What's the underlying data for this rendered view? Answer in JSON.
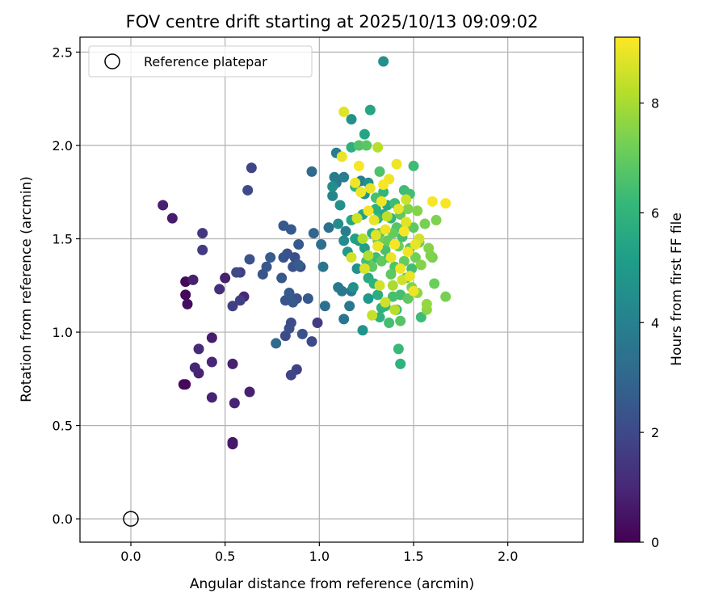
{
  "chart_data": {
    "type": "scatter",
    "title": "FOV centre drift starting at 2025/10/13 09:09:02",
    "xlabel": "Angular distance from reference (arcmin)",
    "ylabel": "Rotation from reference (arcmin)",
    "xlim": [
      -0.27,
      2.4
    ],
    "ylim": [
      -0.125,
      2.58
    ],
    "xticks": [
      0.0,
      0.5,
      1.0,
      1.5,
      2.0
    ],
    "xtick_labels": [
      "0.0",
      "0.5",
      "1.0",
      "1.5",
      "2.0"
    ],
    "yticks": [
      0.0,
      0.5,
      1.0,
      1.5,
      2.0,
      2.5
    ],
    "ytick_labels": [
      "0.0",
      "0.5",
      "1.0",
      "1.5",
      "2.0",
      "2.5"
    ],
    "grid": true,
    "legend": {
      "position": "top-left",
      "entries": [
        "Reference platepar"
      ]
    },
    "reference_point": {
      "x": 0.0,
      "y": 0.0
    },
    "colorbar": {
      "label": "Hours from first FF file",
      "range": [
        0,
        9.2
      ],
      "ticks": [
        0,
        2,
        4,
        6,
        8
      ],
      "tick_labels": [
        "0",
        "2",
        "4",
        "6",
        "8"
      ],
      "colormap": [
        "#440154",
        "#482878",
        "#3e4a89",
        "#31688e",
        "#26828e",
        "#1f9e89",
        "#35b779",
        "#6ece58",
        "#b5de2b",
        "#fde725"
      ]
    },
    "points": [
      [
        0.17,
        1.68,
        0.8
      ],
      [
        0.22,
        1.61,
        0.7
      ],
      [
        0.29,
        1.27,
        0.2
      ],
      [
        0.29,
        1.2,
        0.2
      ],
      [
        0.3,
        1.15,
        0.3
      ],
      [
        0.29,
        0.72,
        0.2
      ],
      [
        0.28,
        0.72,
        0.2
      ],
      [
        0.33,
        1.28,
        0.8
      ],
      [
        0.34,
        0.81,
        1.0
      ],
      [
        0.36,
        0.91,
        1.1
      ],
      [
        0.36,
        0.78,
        0.9
      ],
      [
        0.38,
        1.53,
        1.5
      ],
      [
        0.38,
        1.44,
        1.6
      ],
      [
        0.43,
        0.97,
        0.7
      ],
      [
        0.43,
        0.84,
        1.0
      ],
      [
        0.43,
        0.65,
        0.9
      ],
      [
        0.47,
        1.23,
        1.2
      ],
      [
        0.5,
        1.29,
        0.8
      ],
      [
        0.54,
        0.83,
        0.8
      ],
      [
        0.55,
        0.62,
        0.9
      ],
      [
        0.54,
        0.41,
        0.5
      ],
      [
        0.54,
        0.4,
        0.6
      ],
      [
        0.54,
        1.14,
        1.7
      ],
      [
        0.56,
        1.32,
        2.0
      ],
      [
        0.58,
        1.32,
        1.7
      ],
      [
        0.58,
        1.17,
        1.7
      ],
      [
        0.6,
        1.19,
        1.0
      ],
      [
        0.62,
        1.76,
        2.1
      ],
      [
        0.64,
        1.88,
        1.9
      ],
      [
        0.63,
        1.39,
        2.3
      ],
      [
        0.63,
        0.68,
        0.8
      ],
      [
        0.7,
        1.31,
        2.4
      ],
      [
        0.72,
        1.35,
        2.5
      ],
      [
        0.74,
        1.4,
        2.7
      ],
      [
        0.77,
        0.94,
        3.2
      ],
      [
        0.8,
        1.29,
        2.5
      ],
      [
        0.81,
        1.57,
        2.6
      ],
      [
        0.81,
        1.4,
        2.4
      ],
      [
        0.82,
        1.17,
        2.4
      ],
      [
        0.82,
        0.98,
        2.1
      ],
      [
        0.83,
        1.42,
        2.3
      ],
      [
        0.84,
        1.02,
        2.2
      ],
      [
        0.84,
        1.21,
        2.6
      ],
      [
        0.85,
        1.05,
        2.1
      ],
      [
        0.85,
        1.55,
        2.6
      ],
      [
        0.85,
        0.77,
        1.9
      ],
      [
        0.86,
        1.16,
        2.5
      ],
      [
        0.86,
        1.35,
        2.3
      ],
      [
        0.87,
        1.4,
        2.2
      ],
      [
        0.88,
        1.18,
        2.3
      ],
      [
        0.88,
        0.8,
        1.8
      ],
      [
        0.89,
        1.47,
        2.6
      ],
      [
        0.89,
        1.36,
        2.7
      ],
      [
        0.9,
        1.35,
        2.0
      ],
      [
        0.91,
        0.99,
        2.4
      ],
      [
        0.94,
        1.18,
        2.5
      ],
      [
        0.96,
        1.86,
        3.2
      ],
      [
        0.96,
        0.95,
        2.0
      ],
      [
        0.97,
        1.53,
        3.0
      ],
      [
        0.99,
        1.05,
        1.6
      ],
      [
        1.01,
        1.47,
        3.3
      ],
      [
        1.02,
        1.35,
        3.6
      ],
      [
        1.03,
        1.14,
        3.3
      ],
      [
        1.05,
        1.56,
        3.4
      ],
      [
        1.07,
        1.73,
        4.2
      ],
      [
        1.07,
        1.78,
        4.5
      ],
      [
        1.08,
        1.83,
        3.8
      ],
      [
        1.09,
        1.96,
        3.8
      ],
      [
        1.09,
        1.8,
        3.7
      ],
      [
        1.1,
        1.24,
        3.7
      ],
      [
        1.1,
        1.58,
        4.5
      ],
      [
        1.11,
        1.68,
        4.6
      ],
      [
        1.12,
        1.22,
        3.7
      ],
      [
        1.13,
        1.83,
        3.9
      ],
      [
        1.13,
        1.49,
        4.4
      ],
      [
        1.13,
        1.07,
        3.6
      ],
      [
        1.14,
        1.54,
        3.9
      ],
      [
        1.15,
        1.43,
        4.9
      ],
      [
        1.16,
        1.14,
        3.7
      ],
      [
        1.17,
        1.22,
        3.7
      ],
      [
        1.17,
        2.14,
        4.6
      ],
      [
        1.17,
        1.99,
        5.8
      ],
      [
        1.17,
        1.6,
        5.4
      ],
      [
        1.18,
        1.24,
        4.6
      ],
      [
        1.19,
        1.78,
        5.9
      ],
      [
        1.19,
        1.5,
        5.2
      ],
      [
        1.2,
        1.34,
        4.6
      ],
      [
        1.21,
        2.0,
        6.6
      ],
      [
        1.21,
        1.49,
        4.9
      ],
      [
        1.22,
        1.81,
        3.9
      ],
      [
        1.23,
        1.63,
        5.3
      ],
      [
        1.23,
        1.01,
        4.7
      ],
      [
        1.24,
        1.45,
        5.2
      ],
      [
        1.24,
        2.06,
        5.4
      ],
      [
        1.24,
        1.74,
        4.7
      ],
      [
        1.25,
        2.0,
        6.8
      ],
      [
        1.25,
        1.38,
        6.4
      ],
      [
        1.26,
        1.29,
        5.6
      ],
      [
        1.26,
        1.18,
        4.9
      ],
      [
        1.26,
        1.8,
        4.6
      ],
      [
        1.27,
        2.19,
        5.4
      ],
      [
        1.28,
        1.35,
        6.9
      ],
      [
        1.28,
        1.53,
        5.7
      ],
      [
        1.29,
        1.26,
        5.9
      ],
      [
        1.3,
        1.4,
        6.3
      ],
      [
        1.3,
        1.66,
        5.8
      ],
      [
        1.3,
        1.72,
        6.5
      ],
      [
        1.31,
        1.49,
        7.2
      ],
      [
        1.31,
        1.2,
        5.7
      ],
      [
        1.31,
        1.61,
        6.1
      ],
      [
        1.32,
        1.53,
        6.7
      ],
      [
        1.32,
        1.86,
        6.6
      ],
      [
        1.32,
        1.08,
        5.9
      ],
      [
        1.33,
        1.13,
        5.8
      ],
      [
        1.33,
        1.38,
        6.9
      ],
      [
        1.34,
        1.75,
        6.1
      ],
      [
        1.34,
        1.63,
        5.5
      ],
      [
        1.34,
        2.45,
        4.6
      ],
      [
        1.35,
        1.44,
        6.5
      ],
      [
        1.35,
        1.14,
        6.1
      ],
      [
        1.36,
        1.49,
        7.0
      ],
      [
        1.36,
        1.68,
        5.5
      ],
      [
        1.37,
        1.05,
        6.4
      ],
      [
        1.37,
        1.4,
        5.9
      ],
      [
        1.38,
        1.61,
        6.1
      ],
      [
        1.38,
        1.31,
        6.9
      ],
      [
        1.39,
        1.53,
        7.0
      ],
      [
        1.39,
        1.19,
        6.5
      ],
      [
        1.4,
        1.69,
        6.3
      ],
      [
        1.4,
        1.35,
        6.6
      ],
      [
        1.41,
        1.56,
        6.7
      ],
      [
        1.41,
        1.12,
        6.2
      ],
      [
        1.42,
        0.91,
        6.2
      ],
      [
        1.42,
        1.46,
        7.1
      ],
      [
        1.43,
        1.63,
        6.9
      ],
      [
        1.43,
        1.2,
        6.4
      ],
      [
        1.43,
        1.06,
        6.7
      ],
      [
        1.43,
        0.83,
        5.9
      ],
      [
        1.44,
        1.51,
        6.5
      ],
      [
        1.45,
        1.76,
        6.3
      ],
      [
        1.45,
        1.38,
        7.0
      ],
      [
        1.46,
        1.29,
        6.5
      ],
      [
        1.46,
        1.58,
        7.3
      ],
      [
        1.47,
        1.18,
        6.9
      ],
      [
        1.47,
        1.66,
        7.4
      ],
      [
        1.48,
        1.45,
        6.8
      ],
      [
        1.48,
        1.74,
        6.4
      ],
      [
        1.49,
        1.34,
        6.4
      ],
      [
        1.49,
        1.24,
        7.4
      ],
      [
        1.5,
        1.56,
        6.9
      ],
      [
        1.5,
        1.89,
        6.3
      ],
      [
        1.51,
        1.4,
        7.2
      ],
      [
        1.52,
        1.21,
        7.6
      ],
      [
        1.52,
        1.65,
        7.5
      ],
      [
        1.53,
        1.48,
        7.2
      ],
      [
        1.54,
        1.08,
        6.3
      ],
      [
        1.54,
        1.36,
        7.5
      ],
      [
        1.56,
        1.58,
        7.3
      ],
      [
        1.57,
        1.15,
        7.7
      ],
      [
        1.57,
        1.12,
        7.6
      ],
      [
        1.58,
        1.45,
        7.5
      ],
      [
        1.59,
        1.41,
        7.4
      ],
      [
        1.6,
        1.4,
        7.3
      ],
      [
        1.61,
        1.26,
        7.1
      ],
      [
        1.62,
        1.6,
        7.4
      ],
      [
        1.67,
        1.19,
        7.3
      ],
      [
        1.13,
        2.18,
        8.8
      ],
      [
        1.12,
        1.94,
        8.9
      ],
      [
        1.19,
        1.8,
        9.0
      ],
      [
        1.21,
        1.89,
        9.1
      ],
      [
        1.22,
        1.75,
        9.0
      ],
      [
        1.26,
        1.65,
        9.0
      ],
      [
        1.27,
        1.77,
        8.9
      ],
      [
        1.29,
        1.6,
        8.9
      ],
      [
        1.3,
        1.52,
        8.8
      ],
      [
        1.31,
        1.46,
        9.0
      ],
      [
        1.33,
        1.7,
        9.0
      ],
      [
        1.34,
        1.79,
        9.1
      ],
      [
        1.35,
        1.55,
        9.0
      ],
      [
        1.37,
        1.82,
        9.0
      ],
      [
        1.38,
        1.4,
        8.9
      ],
      [
        1.4,
        1.47,
        9.1
      ],
      [
        1.41,
        1.9,
        9.0
      ],
      [
        1.42,
        1.66,
        8.9
      ],
      [
        1.43,
        1.34,
        9.0
      ],
      [
        1.45,
        1.54,
        9.1
      ],
      [
        1.46,
        1.59,
        8.8
      ],
      [
        1.47,
        1.43,
        9.0
      ],
      [
        1.48,
        1.3,
        8.9
      ],
      [
        1.5,
        1.22,
        9.0
      ],
      [
        1.51,
        1.47,
        8.9
      ],
      [
        1.6,
        1.7,
        9.1
      ],
      [
        1.67,
        1.69,
        9.1
      ],
      [
        1.24,
        1.34,
        8.7
      ],
      [
        1.32,
        1.25,
        8.6
      ],
      [
        1.35,
        1.16,
        8.5
      ],
      [
        1.28,
        1.09,
        8.4
      ],
      [
        1.2,
        1.61,
        8.5
      ],
      [
        1.17,
        1.4,
        8.6
      ],
      [
        1.4,
        1.12,
        8.2
      ],
      [
        1.44,
        1.28,
        8.5
      ],
      [
        1.53,
        1.5,
        8.6
      ],
      [
        1.46,
        1.71,
        8.5
      ],
      [
        1.36,
        1.62,
        8.3
      ],
      [
        1.31,
        1.99,
        8.2
      ],
      [
        1.23,
        1.5,
        8.1
      ],
      [
        1.39,
        1.25,
        8.0
      ],
      [
        1.26,
        1.41,
        8.1
      ]
    ]
  }
}
